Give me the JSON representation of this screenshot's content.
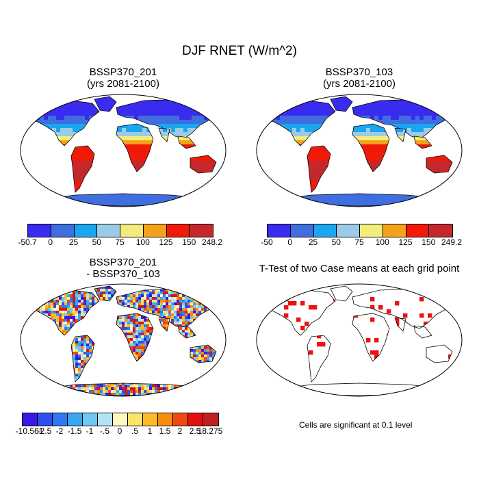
{
  "title": "DJF RNET (W/m^2)",
  "panels": [
    {
      "title1": "BSSP370_201",
      "title2": "(yrs 2081-2100)",
      "colorbar_labels": [
        "-50.7",
        "0",
        "25",
        "50",
        "75",
        "100",
        "125",
        "150",
        "248.2"
      ],
      "colors": [
        "#3a2bf0",
        "#3f6ee0",
        "#1aa6f0",
        "#9ccbe8",
        "#f4ec7a",
        "#f4a21c",
        "#f01a08",
        "#c4282a"
      ]
    },
    {
      "title1": "BSSP370_103",
      "title2": "(yrs 2081-2100)",
      "colorbar_labels": [
        "-50",
        "0",
        "25",
        "50",
        "75",
        "100",
        "125",
        "150",
        "249.2"
      ],
      "colors": [
        "#3a2bf0",
        "#3f6ee0",
        "#1aa6f0",
        "#9ccbe8",
        "#f4ec7a",
        "#f4a21c",
        "#f01a08",
        "#c4282a"
      ]
    },
    {
      "title1": "BSSP370_201",
      "title2": "- BSSP370_103",
      "colorbar_labels": [
        "-10.561",
        "-2.5",
        "-2",
        "-1.5",
        "-1",
        "-.5",
        "0",
        ".5",
        "1",
        "1.5",
        "2",
        "2.5",
        "18.275"
      ],
      "colors": [
        "#3a18e8",
        "#2f4ef0",
        "#2f78f0",
        "#3aa6f0",
        "#6ec8f0",
        "#b4e4f4",
        "#fff6c0",
        "#fce46a",
        "#fcbc2a",
        "#f88c10",
        "#f04a10",
        "#e0100c",
        "#c02020"
      ]
    },
    {
      "title1": "T-Test of two Case means at each grid point",
      "title2": "",
      "note": "Cells are significant at 0.1 level"
    }
  ],
  "colors": {
    "land_outline": "#000000",
    "sig": "#ee1111"
  }
}
